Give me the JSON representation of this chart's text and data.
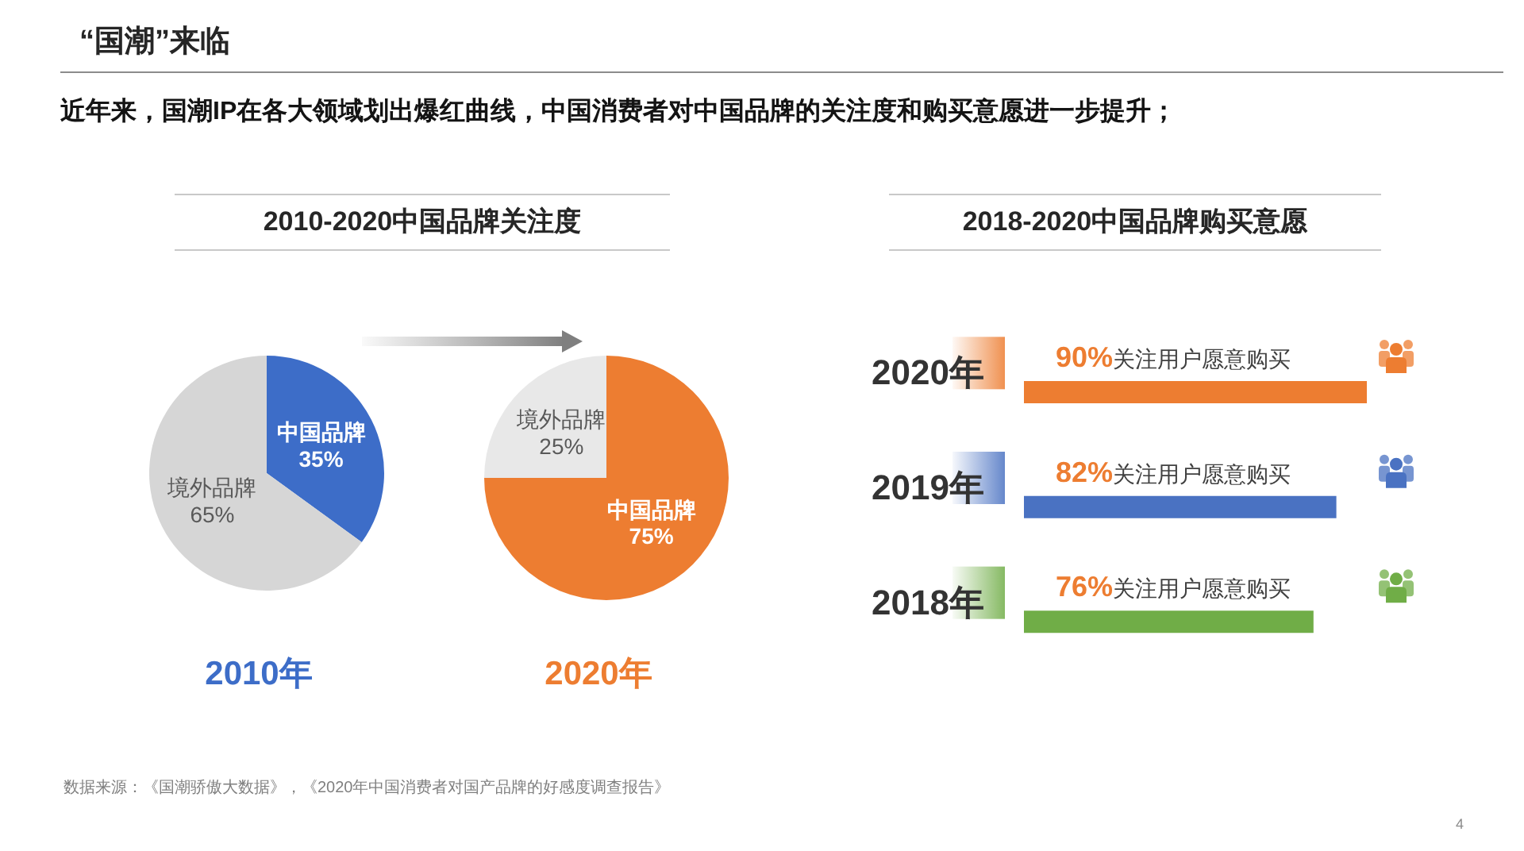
{
  "chart_data": [
    {
      "type": "other",
      "title": "“国潮”来临",
      "subtitle": "近年来，国潮IP在各大领域划出爆红曲线，中国消费者对中国品牌的关注度和购买意愿进一步提升；",
      "annotations": [
        "数据来源：《国潮骄傲大数据》，《2020年中国消费者对国产品牌的好感度调查报告》",
        "4"
      ]
    },
    {
      "type": "pie",
      "title": "2010-2020中国品牌关注度",
      "xlabel": "2010年",
      "categories": [
        "中国品牌",
        "境外品牌"
      ],
      "values": [
        35,
        65
      ],
      "colors": [
        "#3d6dc8",
        "#d6d6d6"
      ],
      "value_labels": [
        "35%",
        "65%"
      ]
    },
    {
      "type": "pie",
      "xlabel": "2020年",
      "categories": [
        "中国品牌",
        "境外品牌"
      ],
      "values": [
        75,
        25
      ],
      "colors": [
        "#ed7d31",
        "#e8e8e8"
      ],
      "value_labels": [
        "75%",
        "25%"
      ]
    },
    {
      "type": "bar",
      "orientation": "horizontal",
      "title": "2018-2020中国品牌购买意愿",
      "categories": [
        "2020年",
        "2019年",
        "2018年"
      ],
      "values": [
        90,
        82,
        76
      ],
      "colors": [
        "#ed7d31",
        "#4a72c2",
        "#70ad47"
      ],
      "value_labels": [
        "90%关注用户愿意购买",
        "82%关注用户愿意购买",
        "76%关注用户愿意购买"
      ]
    }
  ]
}
